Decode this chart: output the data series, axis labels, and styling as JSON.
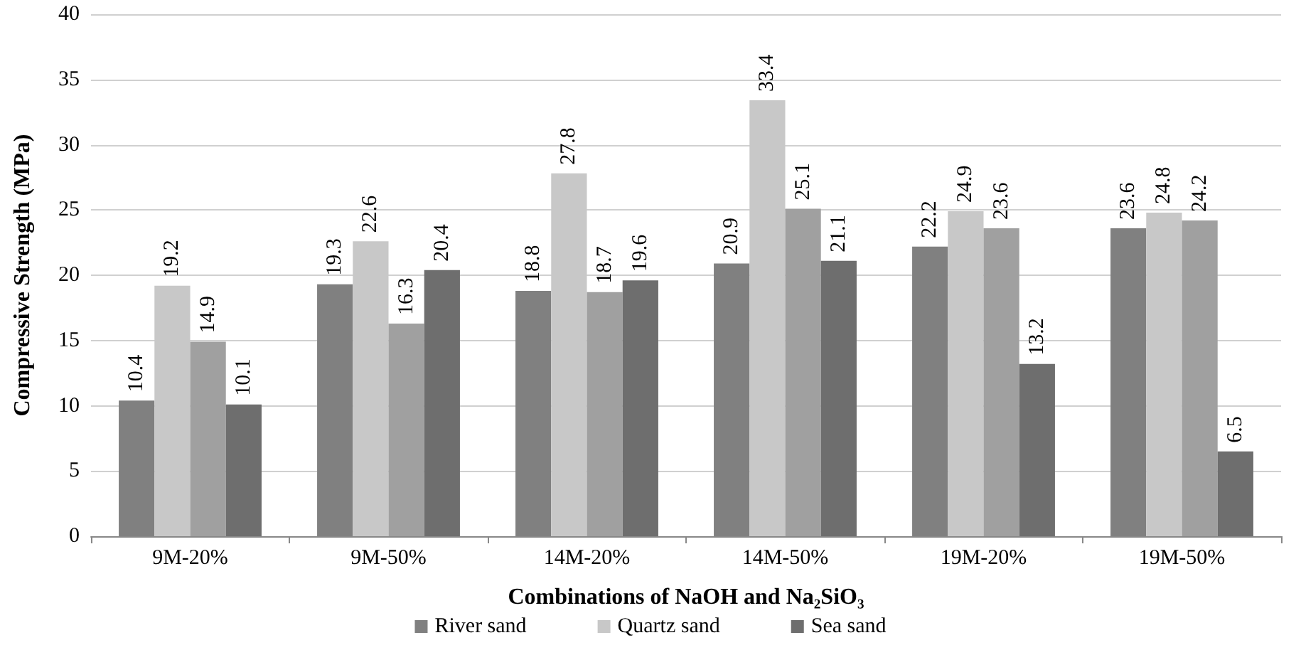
{
  "chart_data": {
    "type": "bar",
    "xlabel": "Combinations of NaOH and Na₂SiO₃",
    "ylabel": "Compressive Strength (MPa)",
    "categories": [
      "9M-20%",
      "9M-50%",
      "14M-20%",
      "14M-50%",
      "19M-20%",
      "19M-50%"
    ],
    "series": [
      {
        "name": "River sand",
        "color": "#808080",
        "values": [
          10.4,
          19.3,
          18.8,
          20.9,
          22.2,
          23.6
        ]
      },
      {
        "name": "Quartz sand",
        "color": "#c8c8c8",
        "values": [
          19.2,
          22.6,
          27.8,
          33.4,
          24.9,
          24.8
        ]
      },
      {
        "color": "#a0a0a0",
        "values": [
          14.9,
          16.3,
          18.7,
          25.1,
          23.6,
          24.2
        ]
      },
      {
        "name": "Sea sand",
        "color": "#6e6e6e",
        "values": [
          10.1,
          20.4,
          19.6,
          21.1,
          13.2,
          6.5
        ]
      }
    ],
    "ylim": [
      0,
      40
    ],
    "yticks": [
      0,
      5,
      10,
      15,
      20,
      25,
      30,
      35,
      40
    ],
    "grid": "y",
    "legend": "bottom",
    "data_labels": true
  }
}
